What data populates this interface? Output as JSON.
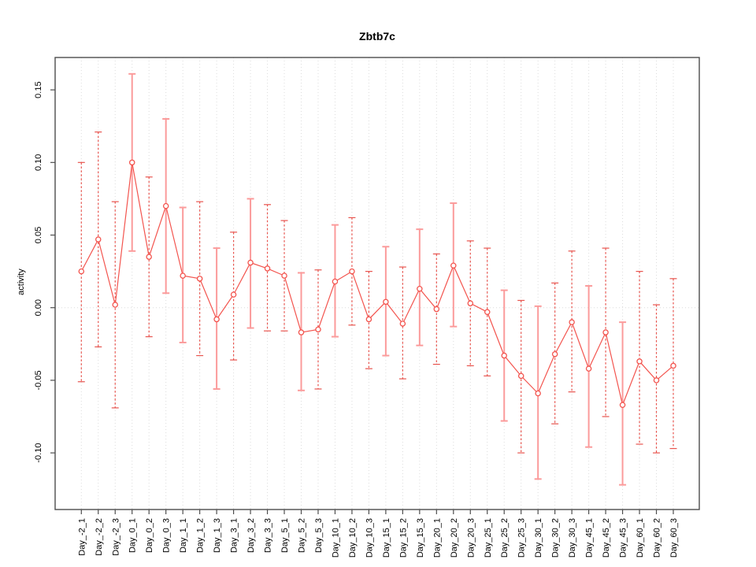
{
  "page": {
    "background": "#FFFFFF"
  },
  "header": {
    "title": "Zbtb7c"
  },
  "axes": {
    "y_label": "activity"
  },
  "chart_data": {
    "type": "line",
    "title": "Zbtb7c",
    "xlabel": "",
    "ylabel": "activity",
    "legend_position": "none",
    "grid": "vertical dotted gridline at every category; horizontal dotted line at y=0",
    "ylim": [
      -0.139,
      0.1723
    ],
    "y_ticks": [
      0.15,
      0.1,
      0.05,
      0.0,
      -0.05,
      -0.1
    ],
    "categories": [
      "Day_-2_1",
      "Day_-2_2",
      "Day_-2_3",
      "Day_0_1",
      "Day_0_2",
      "Day_0_3",
      "Day_1_1",
      "Day_1_2",
      "Day_1_3",
      "Day_3_1",
      "Day_3_2",
      "Day_3_3",
      "Day_5_1",
      "Day_5_2",
      "Day_5_3",
      "Day_10_1",
      "Day_10_2",
      "Day_10_3",
      "Day_15_1",
      "Day_15_2",
      "Day_15_3",
      "Day_20_1",
      "Day_20_2",
      "Day_20_3",
      "Day_25_1",
      "Day_25_2",
      "Day_25_3",
      "Day_30_1",
      "Day_30_2",
      "Day_30_3",
      "Day_45_1",
      "Day_45_2",
      "Day_45_3",
      "Day_60_1",
      "Day_60_2",
      "Day_60_3"
    ],
    "series": [
      {
        "name": "activity",
        "marker": "open-circle",
        "values": [
          0.025,
          0.047,
          0.002,
          0.1,
          0.035,
          0.07,
          0.022,
          0.02,
          -0.008,
          0.009,
          0.031,
          0.027,
          0.022,
          -0.017,
          -0.015,
          0.018,
          0.025,
          -0.008,
          0.004,
          -0.011,
          0.013,
          -0.001,
          0.029,
          0.003,
          -0.003,
          -0.033,
          -0.047,
          -0.059,
          -0.032,
          -0.01,
          -0.042,
          -0.017,
          -0.067,
          -0.037,
          -0.05,
          -0.04
        ],
        "error_high": [
          0.1,
          0.121,
          0.073,
          0.161,
          0.09,
          0.13,
          0.069,
          0.073,
          0.041,
          0.052,
          0.075,
          0.071,
          0.06,
          0.024,
          0.026,
          0.057,
          0.062,
          0.025,
          0.042,
          0.028,
          0.054,
          0.037,
          0.072,
          0.046,
          0.041,
          0.012,
          0.005,
          0.001,
          0.017,
          0.039,
          0.015,
          0.041,
          -0.01,
          0.025,
          0.002,
          0.02
        ],
        "error_low": [
          -0.051,
          -0.027,
          -0.069,
          0.039,
          -0.02,
          0.01,
          -0.024,
          -0.033,
          -0.056,
          -0.036,
          -0.014,
          -0.016,
          -0.016,
          -0.057,
          -0.056,
          -0.02,
          -0.012,
          -0.042,
          -0.033,
          -0.049,
          -0.026,
          -0.039,
          -0.013,
          -0.04,
          -0.047,
          -0.078,
          -0.1,
          -0.118,
          -0.08,
          -0.058,
          -0.096,
          -0.075,
          -0.122,
          -0.094,
          -0.1,
          -0.097
        ]
      }
    ],
    "bar_style": [
      "dashed",
      "dashed",
      "dashed",
      "solid",
      "dashed",
      "solid",
      "solid",
      "dashed",
      "solid",
      "dashed",
      "solid",
      "dashed",
      "dashed",
      "solid",
      "dashed",
      "solid",
      "dashed",
      "dashed",
      "solid",
      "dashed",
      "solid",
      "dashed",
      "solid",
      "dashed",
      "dashed",
      "solid",
      "dashed",
      "solid",
      "dashed",
      "dashed",
      "solid",
      "dashed",
      "solid",
      "dashed",
      "dashed",
      "dashed"
    ],
    "colors": {
      "line": "#F3544E",
      "point_stroke": "#F3544E",
      "point_fill": "#FFFFFF",
      "errorbar_solid": "#FB9B9B",
      "errorbar_dashed": "#E8554F",
      "grid": "#DCDCDC",
      "axis": "#4D4D4D",
      "text": "#000000"
    }
  }
}
